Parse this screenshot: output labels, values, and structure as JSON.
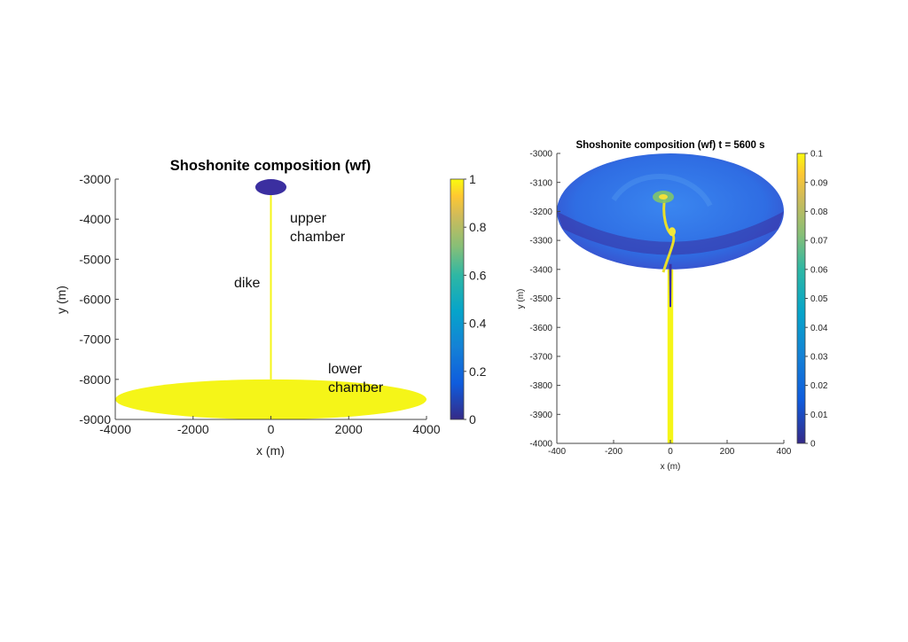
{
  "chart_data": [
    {
      "type": "heatmap",
      "title": "Shoshonite composition (wf)",
      "xlabel": "x (m)",
      "ylabel": "y (m)",
      "xlim": [
        -4000,
        4000
      ],
      "ylim": [
        -9000,
        -3000
      ],
      "xticks": [
        -4000,
        -2000,
        0,
        2000,
        4000
      ],
      "yticks": [
        -3000,
        -4000,
        -5000,
        -6000,
        -7000,
        -8000,
        -9000
      ],
      "colorbar": {
        "min": 0,
        "max": 1,
        "ticks": [
          0,
          0.2,
          0.4,
          0.6,
          0.8,
          1
        ]
      },
      "regions": [
        {
          "label": "upper chamber",
          "label_lines": [
            "upper",
            "chamber"
          ],
          "center_x": 0,
          "center_y": -3200,
          "half_width": 400,
          "half_height": 200,
          "value": 0
        },
        {
          "label": "dike",
          "label_lines": [
            "dike"
          ],
          "x": 0,
          "y_from": -8000,
          "y_to": -3400,
          "value": 1
        },
        {
          "label": "lower chamber",
          "label_lines": [
            "lower",
            "chamber"
          ],
          "center_x": 0,
          "center_y": -8500,
          "half_width": 4000,
          "half_height": 500,
          "value": 1
        }
      ],
      "grid": false,
      "colormap": "parula"
    },
    {
      "type": "heatmap",
      "title": "Shoshonite composition (wf) t = 5600 s",
      "time_s": 5600,
      "xlabel": "x (m)",
      "ylabel": "y (m)",
      "xlim": [
        -400,
        400
      ],
      "ylim": [
        -4000,
        -3000
      ],
      "xticks": [
        -400,
        -200,
        0,
        200,
        400
      ],
      "yticks": [
        -3000,
        -3100,
        -3200,
        -3300,
        -3400,
        -3500,
        -3600,
        -3700,
        -3800,
        -3900,
        -4000
      ],
      "colorbar": {
        "min": 0,
        "max": 0.1,
        "ticks": [
          0,
          0.01,
          0.02,
          0.03,
          0.04,
          0.05,
          0.06,
          0.07,
          0.08,
          0.09,
          0.1
        ]
      },
      "regions": [
        {
          "label": "upper chamber",
          "center_x": 0,
          "center_y": -3200,
          "half_width": 400,
          "half_height": 200,
          "value": 0.02
        },
        {
          "label": "dike",
          "x": 0,
          "half_width": 10,
          "y_from": -4000,
          "y_to": -3400,
          "value": 0.1
        },
        {
          "label": "plume",
          "x": 0,
          "y_from": -3410,
          "y_to": -3150,
          "value": 0.08
        }
      ],
      "grid": false,
      "colormap": "parula"
    }
  ],
  "colors": {
    "low": "#3b2fa0",
    "chamber_mix": "#2f6de3",
    "high": "#f5f518",
    "axis": "#222222"
  }
}
